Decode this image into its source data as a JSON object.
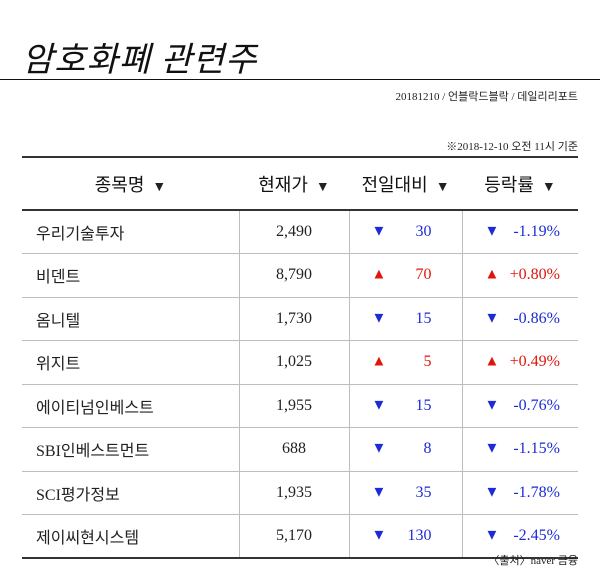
{
  "header": {
    "title": "암호화폐 관련주",
    "meta": "20181210 / 언블락드블락 / 데일리리포트"
  },
  "basis_note": "※2018-12-10 오전 11시 기준",
  "table": {
    "columns": [
      {
        "label": "종목명",
        "sort_icon": "▼"
      },
      {
        "label": "현재가",
        "sort_icon": "▼"
      },
      {
        "label": "전일대비",
        "sort_icon": "▼"
      },
      {
        "label": "등락률",
        "sort_icon": "▼"
      }
    ],
    "rows": [
      {
        "name": "우리기술투자",
        "price": "2,490",
        "dir": "down",
        "arrow": "▼",
        "change": "30",
        "rate": "-1.19%"
      },
      {
        "name": "비덴트",
        "price": "8,790",
        "dir": "up",
        "arrow": "▲",
        "change": "70",
        "rate": "+0.80%"
      },
      {
        "name": "옴니텔",
        "price": "1,730",
        "dir": "down",
        "arrow": "▼",
        "change": "15",
        "rate": "-0.86%"
      },
      {
        "name": "위지트",
        "price": "1,025",
        "dir": "up",
        "arrow": "▲",
        "change": "5",
        "rate": "+0.49%"
      },
      {
        "name": "에이티넘인베스트",
        "price": "1,955",
        "dir": "down",
        "arrow": "▼",
        "change": "15",
        "rate": "-0.76%"
      },
      {
        "name": "SBI인베스트먼트",
        "price": "688",
        "dir": "down",
        "arrow": "▼",
        "change": "8",
        "rate": "-1.15%"
      },
      {
        "name": "SCI평가정보",
        "price": "1,935",
        "dir": "down",
        "arrow": "▼",
        "change": "35",
        "rate": "-1.78%"
      },
      {
        "name": "제이씨현시스템",
        "price": "5,170",
        "dir": "down",
        "arrow": "▼",
        "change": "130",
        "rate": "-2.45%"
      }
    ]
  },
  "source": "〈출처〉naver 금융",
  "colors": {
    "up": "#e0150c",
    "down": "#1d2bd6"
  }
}
